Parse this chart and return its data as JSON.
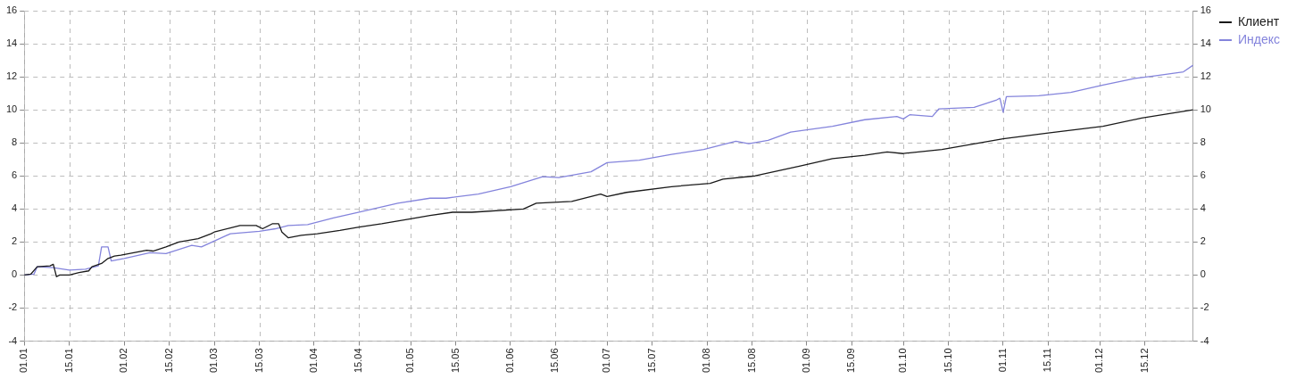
{
  "chart_data": {
    "type": "line",
    "legend": "top right",
    "grid": true,
    "line_style": "solid",
    "marker": "none",
    "xlim": [
      "--01-01",
      "--12-30"
    ],
    "xticks": [
      {
        "value": "--01-01",
        "label": "01.01"
      },
      {
        "value": "--01-15",
        "label": "15.01"
      },
      {
        "value": "--02-01",
        "label": "01.02"
      },
      {
        "value": "--02-15",
        "label": "15.02"
      },
      {
        "value": "--03-01",
        "label": "01.03"
      },
      {
        "value": "--03-15",
        "label": "15.03"
      },
      {
        "value": "--04-01",
        "label": "01.04"
      },
      {
        "value": "--04-15",
        "label": "15.04"
      },
      {
        "value": "--05-01",
        "label": "01.05"
      },
      {
        "value": "--05-15",
        "label": "15.05"
      },
      {
        "value": "--06-01",
        "label": "01.06"
      },
      {
        "value": "--06-15",
        "label": "15.06"
      },
      {
        "value": "--07-01",
        "label": "01.07"
      },
      {
        "value": "--07-15",
        "label": "15.07"
      },
      {
        "value": "--08-01",
        "label": "01.08"
      },
      {
        "value": "--08-15",
        "label": "15.08"
      },
      {
        "value": "--09-01",
        "label": "01.09"
      },
      {
        "value": "--09-15",
        "label": "15.09"
      },
      {
        "value": "--10-01",
        "label": "01.10"
      },
      {
        "value": "--10-15",
        "label": "15.10"
      },
      {
        "value": "--11-01",
        "label": "01.11"
      },
      {
        "value": "--11-15",
        "label": "15.11"
      },
      {
        "value": "--12-01",
        "label": "01.12"
      },
      {
        "value": "--12-15",
        "label": "15.12"
      }
    ],
    "ylim": [
      -4,
      16
    ],
    "yticks": [
      -4,
      -2,
      0,
      2,
      4,
      6,
      8,
      10,
      12,
      14,
      16
    ],
    "y2lim": [
      -4,
      16
    ],
    "y2ticks": [
      -4,
      -2,
      0,
      2,
      4,
      6,
      8,
      10,
      12,
      14,
      16
    ],
    "series": [
      {
        "name": "Клиент",
        "color": "#1a1a1a",
        "x": [
          "--01-01",
          "--01-03",
          "--01-05",
          "--01-09",
          "--01-10",
          "--01-11",
          "--01-12",
          "--01-15",
          "--01-18",
          "--01-21",
          "--01-22",
          "--01-25",
          "--01-27",
          "--01-29",
          "--01-31",
          "--02-04",
          "--02-08",
          "--02-10",
          "--02-14",
          "--02-18",
          "--02-24",
          "--02-28",
          "--03-01",
          "--03-06",
          "--03-09",
          "--03-14",
          "--03-16",
          "--03-19",
          "--03-21",
          "--03-22",
          "--03-24",
          "--03-28",
          "--04-02",
          "--04-09",
          "--04-15",
          "--04-22",
          "--05-01",
          "--05-07",
          "--05-14",
          "--05-20",
          "--06-05",
          "--06-09",
          "--06-20",
          "--06-29",
          "--07-01",
          "--07-07",
          "--07-21",
          "--08-02",
          "--08-06",
          "--08-16",
          "--08-30",
          "--09-09",
          "--09-19",
          "--09-26",
          "--10-01",
          "--10-03",
          "--10-13",
          "--11-01",
          "--11-15",
          "--12-02",
          "--12-14",
          "--12-30"
        ],
        "values": [
          0,
          0.05,
          0.5,
          0.55,
          0.65,
          -0.1,
          0,
          0,
          0.15,
          0.25,
          0.5,
          0.7,
          1.0,
          1.15,
          1.2,
          1.35,
          1.5,
          1.45,
          1.7,
          2.0,
          2.2,
          2.5,
          2.6,
          2.85,
          3.0,
          3.0,
          2.8,
          3.1,
          3.1,
          2.6,
          2.25,
          2.4,
          2.5,
          2.7,
          2.9,
          3.1,
          3.4,
          3.6,
          3.8,
          3.8,
          4.0,
          4.35,
          4.45,
          4.9,
          4.75,
          5.0,
          5.35,
          5.55,
          5.8,
          6.0,
          6.6,
          7.05,
          7.25,
          7.45,
          7.35,
          7.4,
          7.6,
          8.25,
          8.6,
          9.0,
          9.5,
          10.0
        ]
      },
      {
        "name": "Индекс",
        "color": "#8484dc",
        "x": [
          "--01-01",
          "--01-04",
          "--01-05",
          "--01-10",
          "--01-15",
          "--01-20",
          "--01-24",
          "--01-25",
          "--01-27",
          "--01-28",
          "--02-01",
          "--02-09",
          "--02-14",
          "--02-22",
          "--02-25",
          "--03-06",
          "--03-15",
          "--03-20",
          "--03-24",
          "--03-30",
          "--04-07",
          "--04-15",
          "--04-27",
          "--05-07",
          "--05-12",
          "--05-22",
          "--06-01",
          "--06-11",
          "--06-16",
          "--06-26",
          "--07-01",
          "--07-11",
          "--07-21",
          "--07-31",
          "--08-10",
          "--08-14",
          "--08-20",
          "--08-27",
          "--09-09",
          "--09-19",
          "--09-29",
          "--10-01",
          "--10-03",
          "--10-10",
          "--10-12",
          "--10-23",
          "--10-30",
          "--10-31",
          "--11-01",
          "--11-02",
          "--11-12",
          "--11-22",
          "--12-02",
          "--12-12",
          "--12-18",
          "--12-27",
          "--12-30"
        ],
        "values": [
          0,
          0.05,
          0.5,
          0.45,
          0.3,
          0.35,
          0.55,
          1.7,
          1.7,
          0.85,
          1.0,
          1.35,
          1.3,
          1.8,
          1.7,
          2.5,
          2.65,
          2.8,
          3.0,
          3.05,
          3.45,
          3.8,
          4.35,
          4.65,
          4.65,
          4.9,
          5.35,
          5.95,
          5.9,
          6.25,
          6.8,
          6.95,
          7.3,
          7.6,
          8.1,
          7.95,
          8.15,
          8.65,
          9.0,
          9.4,
          9.6,
          9.45,
          9.7,
          9.6,
          10.05,
          10.15,
          10.6,
          10.7,
          9.85,
          10.8,
          10.85,
          11.05,
          11.5,
          11.9,
          12.05,
          12.3,
          12.7
        ]
      }
    ]
  }
}
